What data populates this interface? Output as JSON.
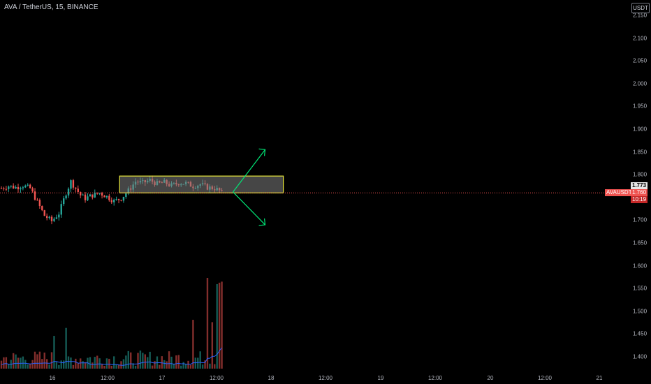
{
  "header": {
    "symbol_title": "AVA / TetherUS, 15, BINANCE",
    "currency": "USDT"
  },
  "price_axis": {
    "ticks": [
      "2.150",
      "2.100",
      "2.050",
      "2.000",
      "1.950",
      "1.900",
      "1.850",
      "1.800",
      "1.750",
      "1.700",
      "1.650",
      "1.600",
      "1.550",
      "1.500",
      "1.450",
      "1.400"
    ]
  },
  "time_axis": {
    "ticks": [
      "16",
      "12:00",
      "17",
      "12:00",
      "18",
      "12:00",
      "19",
      "12:00",
      "20",
      "12:00",
      "21"
    ]
  },
  "last_price": {
    "symbol_label": "AVAUSDT",
    "price": "1.760",
    "countdown": "10:19",
    "marker_price": "1.773"
  },
  "colors": {
    "up": "#26a69a",
    "down": "#ef5350",
    "volume_ma": "#2962ff",
    "box_border": "#e8e83a",
    "box_fill": "#808080",
    "arrow": "#00e676"
  },
  "chart_data": {
    "type": "candlestick",
    "symbol": "AVA / TetherUS",
    "interval": "15",
    "exchange": "BINANCE",
    "ylim": [
      1.39,
      2.16
    ],
    "price_levels": {
      "last": 1.76,
      "marker": 1.773
    },
    "x_ticks": [
      "16",
      "12:00",
      "17",
      "12:00",
      "18",
      "12:00",
      "19",
      "12:00",
      "20",
      "12:00",
      "21"
    ],
    "y_ticks": [
      2.15,
      2.1,
      2.05,
      2.0,
      1.95,
      1.9,
      1.85,
      1.8,
      1.75,
      1.7,
      1.65,
      1.6,
      1.55,
      1.5,
      1.45,
      1.4
    ],
    "price_path": [
      [
        0,
        1.77
      ],
      [
        3,
        1.775
      ],
      [
        6,
        1.772
      ],
      [
        9,
        1.776
      ],
      [
        12,
        1.77
      ],
      [
        15,
        1.74
      ],
      [
        18,
        1.71
      ],
      [
        21,
        1.698
      ],
      [
        24,
        1.715
      ],
      [
        27,
        1.76
      ],
      [
        29,
        1.785
      ],
      [
        31,
        1.77
      ],
      [
        33,
        1.755
      ],
      [
        35,
        1.748
      ],
      [
        38,
        1.755
      ],
      [
        41,
        1.76
      ],
      [
        44,
        1.752
      ],
      [
        47,
        1.742
      ],
      [
        50,
        1.748
      ],
      [
        53,
        1.765
      ],
      [
        56,
        1.785
      ],
      [
        59,
        1.782
      ],
      [
        62,
        1.788
      ],
      [
        65,
        1.78
      ],
      [
        68,
        1.783
      ],
      [
        71,
        1.776
      ],
      [
        74,
        1.782
      ],
      [
        77,
        1.781
      ],
      [
        80,
        1.775
      ],
      [
        83,
        1.779
      ],
      [
        86,
        1.772
      ],
      [
        89,
        1.77
      ],
      [
        91,
        1.765
      ],
      [
        92,
        1.76
      ]
    ],
    "annotations": [
      {
        "type": "rectangle",
        "from_index": 54,
        "to_index": 120,
        "price_top": 1.797,
        "price_bottom": 1.76
      },
      {
        "type": "arrow",
        "direction": "up",
        "target_price": 1.855
      },
      {
        "type": "arrow",
        "direction": "down",
        "target_price": 1.69
      }
    ]
  }
}
